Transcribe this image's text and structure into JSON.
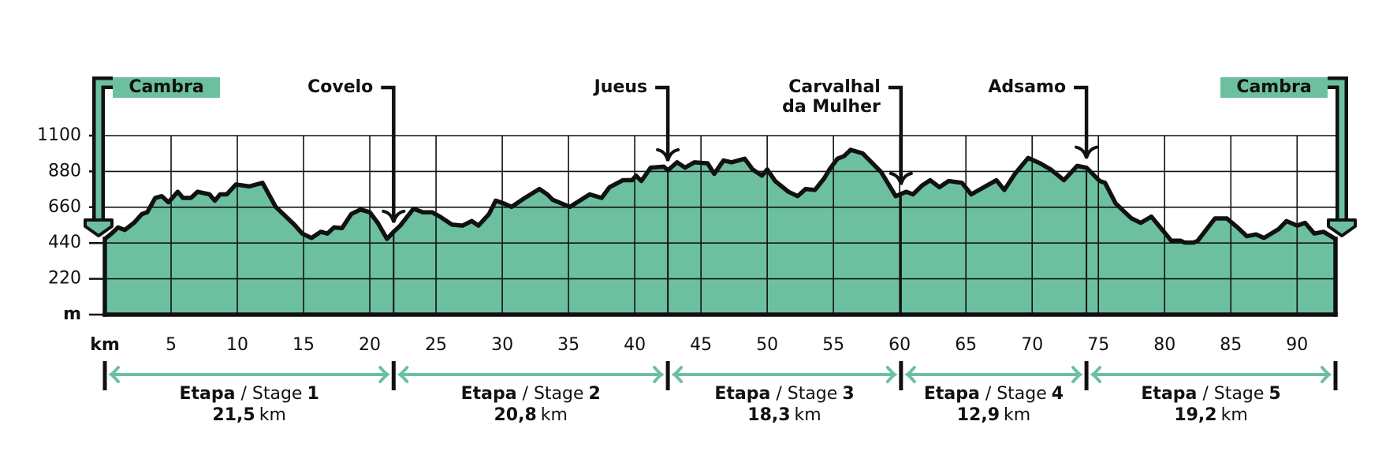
{
  "chart_data": {
    "type": "area",
    "xlabel": "km",
    "ylabel": "m",
    "color": "#6cc0a0",
    "grid": true,
    "xlim": [
      0,
      92.9
    ],
    "ylim": [
      0,
      1100
    ],
    "xticks": [
      5,
      10,
      15,
      20,
      25,
      30,
      35,
      40,
      45,
      50,
      55,
      60,
      65,
      70,
      75,
      80,
      85,
      90
    ],
    "yticks": [
      220,
      440,
      660,
      880,
      1100
    ],
    "x": [
      0,
      0.5,
      1,
      1.5,
      2.2,
      2.8,
      3.2,
      3.8,
      4.3,
      4.8,
      5.5,
      5.9,
      6.5,
      7,
      7.9,
      8.3,
      8.7,
      9.2,
      9.9,
      10.9,
      11.9,
      12.9,
      14.3,
      14.9,
      15.6,
      16.3,
      16.8,
      17.3,
      17.9,
      18.6,
      19.3,
      20,
      20.6,
      21.3,
      21.8,
      22.3,
      23.3,
      24,
      24.7,
      25.3,
      26.2,
      27,
      27.7,
      28.2,
      29,
      29.5,
      30.1,
      30.7,
      31.7,
      32.8,
      33.4,
      33.8,
      35.1,
      36.6,
      37.5,
      38.1,
      39.1,
      39.8,
      40.1,
      40.5,
      41.2,
      42.2,
      42.5,
      43.2,
      43.8,
      44.5,
      45.5,
      46,
      46.7,
      47.3,
      48.3,
      48.9,
      49.6,
      50,
      50.6,
      51.6,
      52.3,
      52.9,
      53.6,
      54.3,
      54.7,
      55.3,
      55.8,
      56.3,
      57.2,
      58.6,
      59.7,
      60.5,
      61,
      61.7,
      62.3,
      63,
      63.7,
      64.7,
      65.4,
      67.3,
      67.9,
      68.7,
      69.7,
      70.6,
      71.4,
      72.4,
      73.4,
      74.1,
      75.1,
      75.5,
      76.3,
      77,
      77.5,
      78.2,
      79,
      80.5,
      81.2,
      81.5,
      82.2,
      82.5,
      83.8,
      84.7,
      85.5,
      86.2,
      86.9,
      87.5,
      88.6,
      89.2,
      90,
      90.6,
      91.3,
      92,
      92.9
    ],
    "values": [
      465,
      498,
      536,
      520,
      564,
      618,
      629,
      717,
      728,
      690,
      755,
      717,
      717,
      755,
      739,
      700,
      739,
      739,
      800,
      788,
      810,
      662,
      553,
      498,
      471,
      509,
      498,
      536,
      531,
      618,
      646,
      629,
      564,
      465,
      509,
      547,
      651,
      629,
      629,
      602,
      553,
      547,
      575,
      547,
      618,
      700,
      684,
      662,
      717,
      772,
      739,
      706,
      662,
      739,
      717,
      783,
      826,
      826,
      854,
      821,
      903,
      909,
      887,
      936,
      903,
      936,
      930,
      865,
      947,
      936,
      958,
      892,
      854,
      892,
      821,
      755,
      728,
      772,
      766,
      837,
      892,
      958,
      974,
      1013,
      991,
      876,
      728,
      755,
      739,
      794,
      826,
      783,
      821,
      810,
      739,
      826,
      766,
      865,
      963,
      930,
      892,
      826,
      914,
      903,
      821,
      810,
      684,
      629,
      591,
      564,
      602,
      454,
      454,
      443,
      443,
      454,
      591,
      591,
      536,
      482,
      493,
      471,
      525,
      575,
      547,
      564,
      498,
      509,
      465
    ],
    "waypoints": {
      "labels": [
        [
          "Cambra"
        ],
        [
          "Covelo"
        ],
        [
          "Jueus"
        ],
        [
          "Carvalhal",
          "da Mulher"
        ],
        [
          "Adsamo"
        ],
        [
          "Cambra"
        ]
      ],
      "km": [
        0,
        21.8,
        42.5,
        60.1,
        74.1,
        92.9
      ]
    },
    "stages": {
      "label": "Etapa",
      "sublabel": "/ Stage",
      "numbers": [
        1,
        2,
        3,
        4,
        5
      ],
      "values": [
        21.5,
        20.8,
        18.3,
        12.9,
        19.2
      ],
      "value_labels": [
        "21,5",
        "20,8",
        "18,3",
        "12,9",
        "19,2"
      ],
      "unit": "km"
    }
  }
}
